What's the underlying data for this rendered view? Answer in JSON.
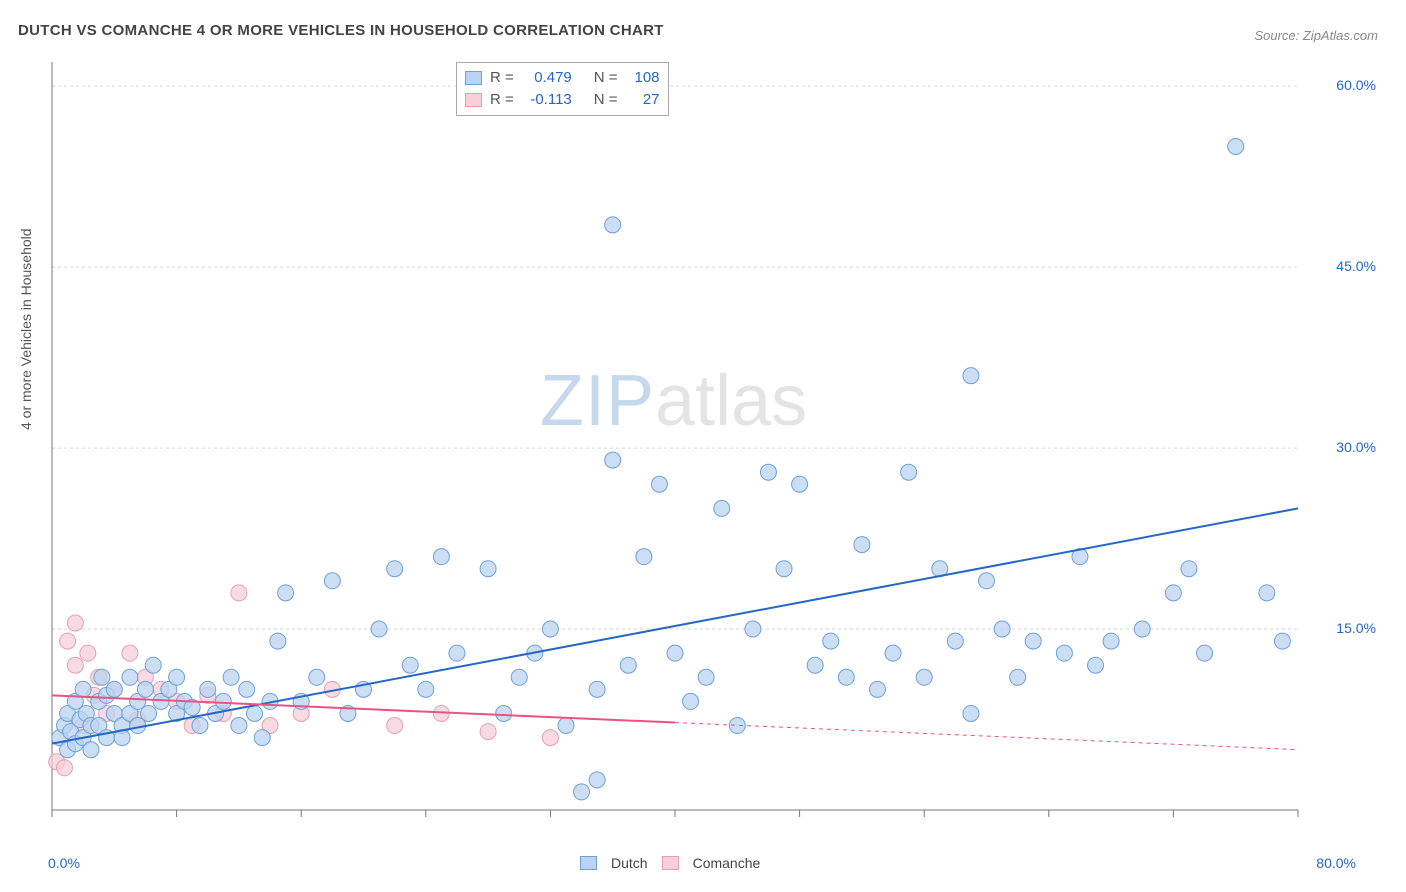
{
  "title": "DUTCH VS COMANCHE 4 OR MORE VEHICLES IN HOUSEHOLD CORRELATION CHART",
  "source_label": "Source: ",
  "source_name": "ZipAtlas.com",
  "yaxis_label": "4 or more Vehicles in Household",
  "watermark_a": "ZIP",
  "watermark_b": "atlas",
  "plot": {
    "x_min": 0.0,
    "x_max": 80.0,
    "y_min": 0.0,
    "y_max": 62.0,
    "x_label_min": "0.0%",
    "x_label_max": "80.0%",
    "y_ticks": [
      {
        "v": 15.0,
        "label": "15.0%"
      },
      {
        "v": 30.0,
        "label": "30.0%"
      },
      {
        "v": 45.0,
        "label": "45.0%"
      },
      {
        "v": 60.0,
        "label": "60.0%"
      }
    ],
    "x_tick_positions": [
      0,
      8,
      16,
      24,
      32,
      40,
      48,
      56,
      64,
      72,
      80
    ],
    "background_color": "#ffffff",
    "grid_color": "#d6d6d6",
    "axis_color": "#777777",
    "marker_radius": 8,
    "marker_stroke_width": 1,
    "line_width": 2,
    "series": {
      "dutch": {
        "label": "Dutch",
        "fill": "#b9d3f0",
        "stroke": "#6fa0d8",
        "line_color": "#2566c9",
        "R": "0.479",
        "N": "108",
        "trend": {
          "x1": 0,
          "y1": 5.5,
          "x2": 80,
          "y2": 25.0,
          "solid_until_x": 80
        },
        "points": [
          [
            0.5,
            6
          ],
          [
            0.8,
            7
          ],
          [
            1,
            5
          ],
          [
            1,
            8
          ],
          [
            1.2,
            6.5
          ],
          [
            1.5,
            9
          ],
          [
            1.5,
            5.5
          ],
          [
            1.8,
            7.5
          ],
          [
            2,
            6
          ],
          [
            2,
            10
          ],
          [
            2.2,
            8
          ],
          [
            2.5,
            7
          ],
          [
            2.5,
            5
          ],
          [
            3,
            9
          ],
          [
            3,
            7
          ],
          [
            3.2,
            11
          ],
          [
            3.5,
            6
          ],
          [
            3.5,
            9.5
          ],
          [
            4,
            8
          ],
          [
            4,
            10
          ],
          [
            4.5,
            7
          ],
          [
            4.5,
            6
          ],
          [
            5,
            11
          ],
          [
            5,
            8
          ],
          [
            5.5,
            9
          ],
          [
            5.5,
            7
          ],
          [
            6,
            10
          ],
          [
            6.2,
            8
          ],
          [
            6.5,
            12
          ],
          [
            7,
            9
          ],
          [
            7.5,
            10
          ],
          [
            8,
            8
          ],
          [
            8,
            11
          ],
          [
            8.5,
            9
          ],
          [
            9,
            8.5
          ],
          [
            9.5,
            7
          ],
          [
            10,
            10
          ],
          [
            10.5,
            8
          ],
          [
            11,
            9
          ],
          [
            11.5,
            11
          ],
          [
            12,
            7
          ],
          [
            12.5,
            10
          ],
          [
            13,
            8
          ],
          [
            13.5,
            6
          ],
          [
            14,
            9
          ],
          [
            14.5,
            14
          ],
          [
            15,
            18
          ],
          [
            16,
            9
          ],
          [
            17,
            11
          ],
          [
            18,
            19
          ],
          [
            19,
            8
          ],
          [
            20,
            10
          ],
          [
            21,
            15
          ],
          [
            22,
            20
          ],
          [
            23,
            12
          ],
          [
            24,
            10
          ],
          [
            25,
            21
          ],
          [
            26,
            13
          ],
          [
            28,
            20
          ],
          [
            29,
            8
          ],
          [
            30,
            11
          ],
          [
            31,
            13
          ],
          [
            32,
            15
          ],
          [
            33,
            7
          ],
          [
            34,
            1.5
          ],
          [
            35,
            2.5
          ],
          [
            35,
            10
          ],
          [
            36,
            29
          ],
          [
            36,
            48.5
          ],
          [
            37,
            12
          ],
          [
            38,
            21
          ],
          [
            39,
            27
          ],
          [
            40,
            13
          ],
          [
            41,
            9
          ],
          [
            42,
            11
          ],
          [
            43,
            25
          ],
          [
            44,
            7
          ],
          [
            45,
            15
          ],
          [
            46,
            28
          ],
          [
            47,
            20
          ],
          [
            48,
            27
          ],
          [
            49,
            12
          ],
          [
            50,
            14
          ],
          [
            51,
            11
          ],
          [
            52,
            22
          ],
          [
            53,
            10
          ],
          [
            54,
            13
          ],
          [
            55,
            28
          ],
          [
            56,
            11
          ],
          [
            57,
            20
          ],
          [
            58,
            14
          ],
          [
            59,
            8
          ],
          [
            59,
            36
          ],
          [
            60,
            19
          ],
          [
            61,
            15
          ],
          [
            62,
            11
          ],
          [
            63,
            14
          ],
          [
            65,
            13
          ],
          [
            66,
            21
          ],
          [
            67,
            12
          ],
          [
            68,
            14
          ],
          [
            70,
            15
          ],
          [
            72,
            18
          ],
          [
            73,
            20
          ],
          [
            74,
            13
          ],
          [
            76,
            55
          ],
          [
            78,
            18
          ],
          [
            79,
            14
          ]
        ]
      },
      "comanche": {
        "label": "Comanche",
        "fill": "#f6cfd8",
        "stroke": "#e79fb3",
        "line_color": "#e95383",
        "R": "-0.113",
        "N": "27",
        "trend": {
          "x1": 0,
          "y1": 9.5,
          "x2": 80,
          "y2": 5.0,
          "solid_until_x": 40
        },
        "points": [
          [
            0.3,
            4
          ],
          [
            0.8,
            3.5
          ],
          [
            1,
            14
          ],
          [
            1.5,
            12
          ],
          [
            1.5,
            15.5
          ],
          [
            2,
            7
          ],
          [
            2.3,
            13
          ],
          [
            2.7,
            9.5
          ],
          [
            3,
            11
          ],
          [
            3.5,
            8
          ],
          [
            4,
            10
          ],
          [
            5,
            13
          ],
          [
            5.5,
            7.5
          ],
          [
            6,
            11
          ],
          [
            7,
            10
          ],
          [
            8,
            9
          ],
          [
            9,
            7
          ],
          [
            10,
            9.5
          ],
          [
            11,
            8
          ],
          [
            12,
            18
          ],
          [
            14,
            7
          ],
          [
            16,
            8
          ],
          [
            18,
            10
          ],
          [
            22,
            7
          ],
          [
            25,
            8
          ],
          [
            28,
            6.5
          ],
          [
            32,
            6
          ]
        ]
      }
    }
  },
  "stats_box": {
    "R_label": "R =",
    "N_label": "N ="
  },
  "legend": {
    "items": [
      "dutch",
      "comanche"
    ]
  }
}
